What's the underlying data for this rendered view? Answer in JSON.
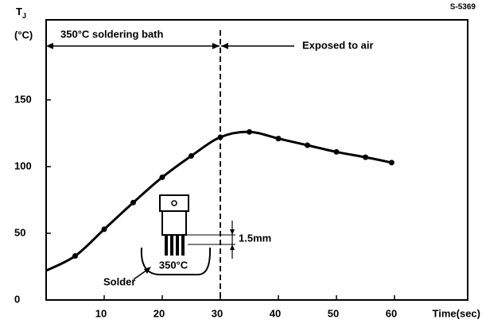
{
  "chart_data": {
    "type": "line",
    "figure_id": "S-5369",
    "y_label": {
      "symbol": "T",
      "subscript": "J",
      "unit": "(°C)"
    },
    "x_label": "Time(sec)",
    "x": [
      0,
      5,
      10,
      15,
      20,
      25,
      30,
      35,
      40,
      45,
      50,
      55,
      59.5
    ],
    "series": [
      {
        "color": "#000000",
        "values": [
          22,
          33,
          53,
          73,
          92,
          108,
          122,
          126,
          121,
          116,
          111,
          107,
          103
        ]
      }
    ],
    "xlim": [
      0,
      72.6
    ],
    "ylim": [
      0,
      210
    ],
    "xticks": [
      10,
      20,
      30,
      40,
      50,
      60
    ],
    "yticks": [
      0,
      50,
      100,
      150
    ],
    "divider_x": 30,
    "annotations": {
      "bath": "350°C soldering bath",
      "air": "Exposed to air",
      "solder": "Solder",
      "bath_temp": "350°C",
      "depth": "1.5mm"
    }
  }
}
